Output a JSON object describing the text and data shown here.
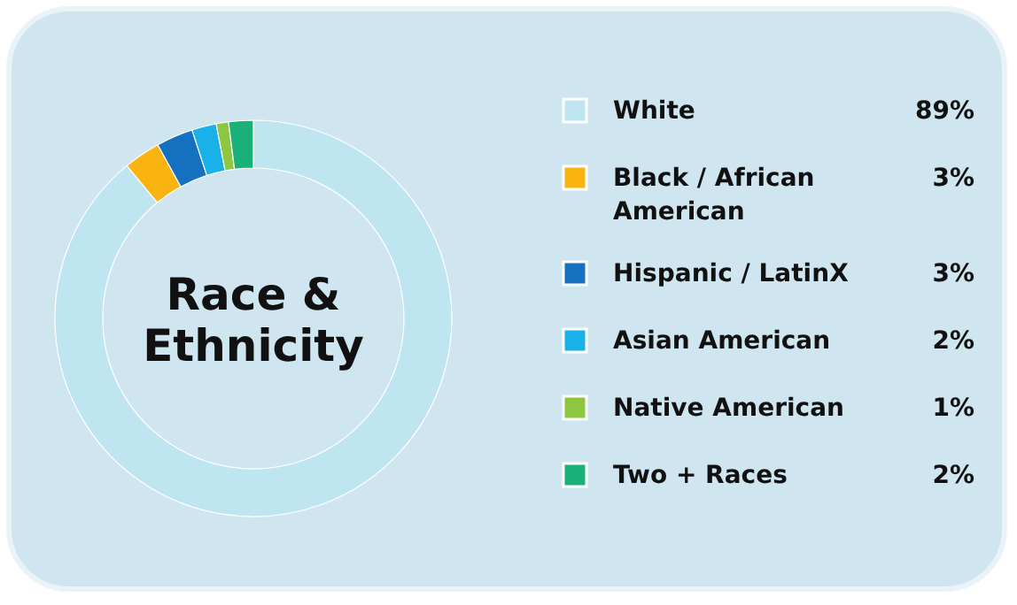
{
  "chart_data": {
    "type": "donut",
    "title": "Race & Ethnicity",
    "categories": [
      "White",
      "Black / African American",
      "Hispanic / LatinX",
      "Asian American",
      "Native American",
      "Two + Races"
    ],
    "values": [
      89,
      3,
      3,
      2,
      1,
      2
    ],
    "colors": [
      "#bfe5f1",
      "#f9b411",
      "#1570c0",
      "#1ab0e8",
      "#8dc63f",
      "#19b07a"
    ],
    "value_labels": [
      "89%",
      "3%",
      "3%",
      "2%",
      "1%",
      "2%"
    ],
    "legend": "right"
  }
}
